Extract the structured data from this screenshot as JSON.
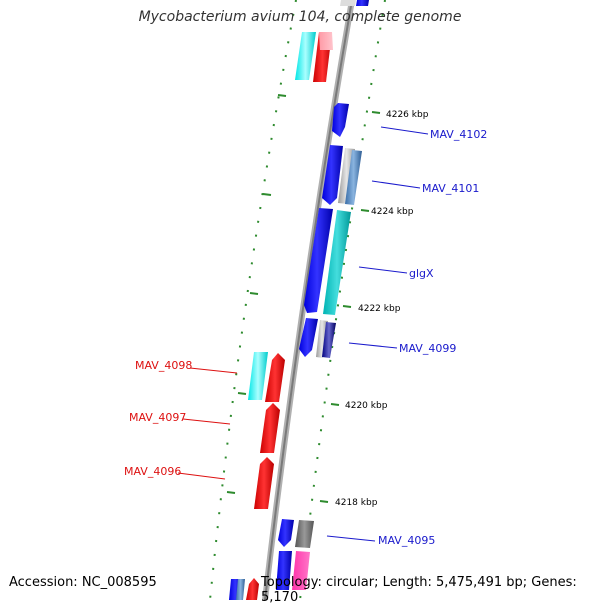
{
  "title": "Mycobacterium avium 104, complete genome",
  "footer": {
    "accession": "Accession: NC_008595",
    "summary": "Topology: circular; Length: 5,475,491 bp; Genes: 5,170"
  },
  "colors": {
    "backbone": "#8c8c8c",
    "tick": "#2e8b2e",
    "forward_label": "#1a1acc",
    "reverse_label": "#dd1111"
  },
  "scale_labels": [
    "4226 kbp",
    "4224 kbp",
    "4222 kbp",
    "4220 kbp",
    "4218 kbp"
  ],
  "gene_labels": {
    "mav4102": "MAV_4102",
    "mav4101": "MAV_4101",
    "glgx": "glgX",
    "mav4099": "MAV_4099",
    "mav4098": "MAV_4098",
    "mav4097": "MAV_4097",
    "mav4096": "MAV_4096",
    "mav4095": "MAV_4095"
  }
}
